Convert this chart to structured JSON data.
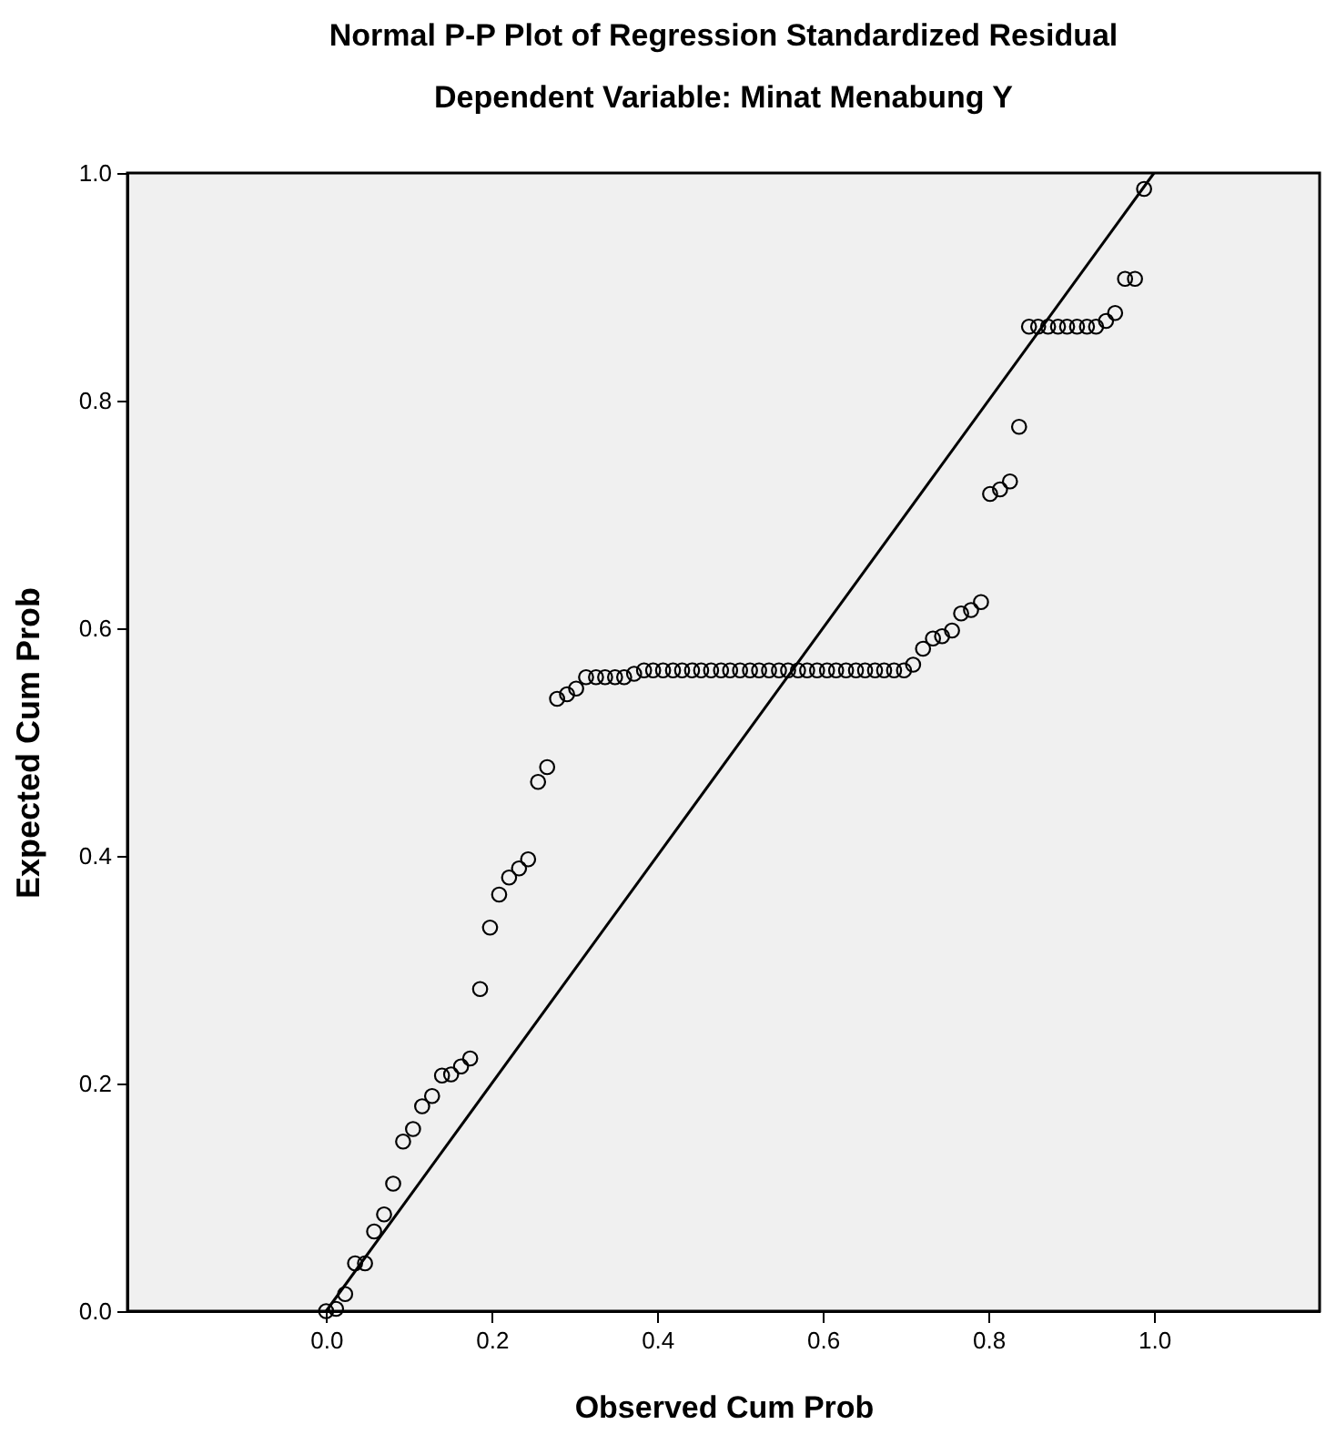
{
  "chart_data": {
    "type": "scatter",
    "title": "Normal P-P Plot of Regression Standardized Residual",
    "subtitle": "Dependent Variable: Minat Menabung Y",
    "xlabel": "Observed Cum Prob",
    "ylabel": "Expected Cum Prob",
    "xlim": [
      -0.24,
      1.2
    ],
    "ylim": [
      0,
      1
    ],
    "xticks": [
      {
        "value": 0,
        "label": "0.0"
      },
      {
        "value": 0.2,
        "label": "0.2"
      },
      {
        "value": 0.4,
        "label": "0.4"
      },
      {
        "value": 0.6,
        "label": "0.6"
      },
      {
        "value": 0.8,
        "label": "0.8"
      },
      {
        "value": 1,
        "label": "1.0"
      }
    ],
    "yticks": [
      {
        "value": 0,
        "label": "0.0"
      },
      {
        "value": 0.2,
        "label": "0.2"
      },
      {
        "value": 0.4,
        "label": "0.4"
      },
      {
        "value": 0.6,
        "label": "0.6"
      },
      {
        "value": 0.8,
        "label": "0.8"
      },
      {
        "value": 1,
        "label": "1.0"
      }
    ],
    "x": [
      0.0,
      0.012,
      0.023,
      0.035,
      0.047,
      0.058,
      0.07,
      0.081,
      0.093,
      0.105,
      0.116,
      0.128,
      0.14,
      0.151,
      0.163,
      0.174,
      0.186,
      0.198,
      0.209,
      0.221,
      0.233,
      0.244,
      0.256,
      0.267,
      0.279,
      0.291,
      0.302,
      0.314,
      0.326,
      0.337,
      0.349,
      0.36,
      0.372,
      0.384,
      0.395,
      0.407,
      0.419,
      0.43,
      0.442,
      0.453,
      0.465,
      0.477,
      0.488,
      0.5,
      0.512,
      0.523,
      0.535,
      0.547,
      0.558,
      0.57,
      0.581,
      0.593,
      0.605,
      0.616,
      0.628,
      0.64,
      0.651,
      0.663,
      0.674,
      0.686,
      0.698,
      0.709,
      0.721,
      0.733,
      0.744,
      0.756,
      0.767,
      0.779,
      0.791,
      0.802,
      0.814,
      0.826,
      0.837,
      0.849,
      0.86,
      0.872,
      0.884,
      0.895,
      0.907,
      0.919,
      0.93,
      0.942,
      0.953,
      0.965,
      0.977,
      0.988
    ],
    "series": [
      {
        "marker": "circle",
        "color": "#000000",
        "values": [
          0.0,
          0.002,
          0.015,
          0.042,
          0.042,
          0.07,
          0.085,
          0.112,
          0.149,
          0.16,
          0.18,
          0.189,
          0.207,
          0.208,
          0.215,
          0.222,
          0.283,
          0.337,
          0.366,
          0.381,
          0.389,
          0.397,
          0.465,
          0.478,
          0.538,
          0.542,
          0.547,
          0.557,
          0.557,
          0.557,
          0.557,
          0.557,
          0.56,
          0.563,
          0.563,
          0.563,
          0.563,
          0.563,
          0.563,
          0.563,
          0.563,
          0.563,
          0.563,
          0.563,
          0.563,
          0.563,
          0.563,
          0.563,
          0.563,
          0.563,
          0.563,
          0.563,
          0.563,
          0.563,
          0.563,
          0.563,
          0.563,
          0.563,
          0.563,
          0.563,
          0.563,
          0.568,
          0.582,
          0.591,
          0.593,
          0.598,
          0.613,
          0.616,
          0.623,
          0.718,
          0.722,
          0.729,
          0.777,
          0.865,
          0.865,
          0.865,
          0.865,
          0.865,
          0.865,
          0.865,
          0.865,
          0.87,
          0.877,
          0.907,
          0.907,
          0.986
        ]
      },
      {
        "type": "line",
        "marker": "none",
        "color": "#000000",
        "x": [
          0,
          1
        ],
        "values": [
          0,
          1
        ]
      }
    ]
  }
}
